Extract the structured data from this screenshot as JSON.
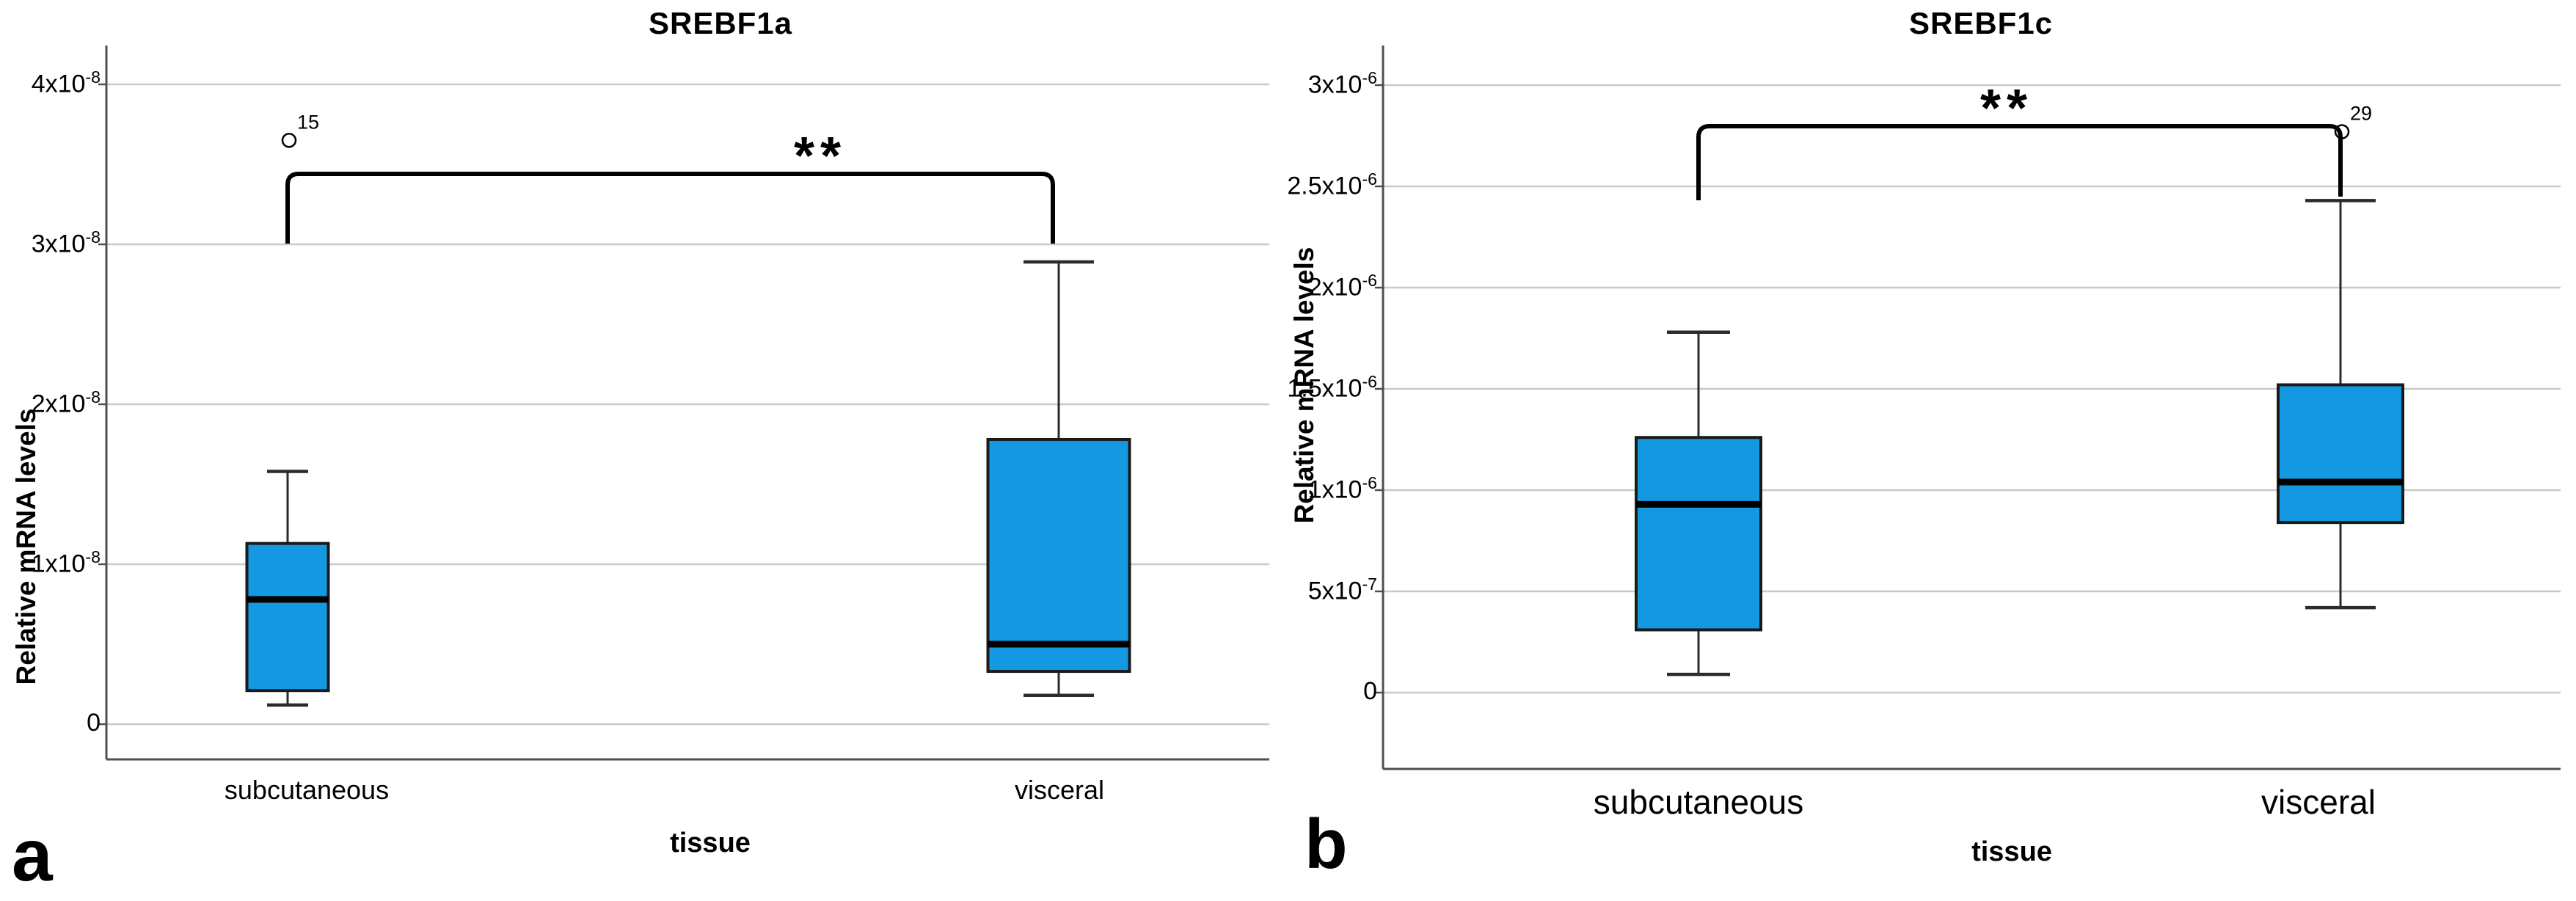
{
  "figure": {
    "background": "#ffffff",
    "panel_letters": [
      "a",
      "b"
    ]
  },
  "colors": {
    "box_fill": "#1598E2",
    "box_border": "#1a1a1a",
    "median": "#000000",
    "whisker": "#2b2b2b",
    "gridline": "#c9c9c9",
    "axis": "#4f4f4f",
    "text": "#000000"
  },
  "chart_data": [
    {
      "type": "box",
      "title": "SREBF1a",
      "ylabel": "Relative mRNA levels",
      "xlabel": "tissue",
      "categories": [
        "subcutaneous",
        "visceral"
      ],
      "grid": true,
      "legend": "none",
      "ylim": [
        -2.2e-09,
        4.25e-08
      ],
      "y_ticks": [
        {
          "text": "0",
          "sup": "",
          "v": 0
        },
        {
          "text": "1x10",
          "sup": "-8",
          "v": 1e-08
        },
        {
          "text": "2x10",
          "sup": "-8",
          "v": 2e-08
        },
        {
          "text": "3x10",
          "sup": "-8",
          "v": 3e-08
        },
        {
          "text": "4x10",
          "sup": "-8",
          "v": 4e-08
        }
      ],
      "series": [
        {
          "name": "subcutaneous",
          "min": 1.2e-09,
          "q1": 2.1e-09,
          "median": 7.8e-09,
          "q3": 1.13e-08,
          "max": 1.58e-08,
          "outliers": [
            {
              "v": 3.65e-08,
              "label": "15"
            }
          ]
        },
        {
          "name": "visceral",
          "min": 1.8e-09,
          "q1": 3.3e-09,
          "median": 5e-09,
          "q3": 1.78e-08,
          "max": 2.89e-08,
          "outliers": []
        }
      ],
      "significance": {
        "text": "**",
        "between": [
          "subcutaneous",
          "visceral"
        ]
      }
    },
    {
      "type": "box",
      "title": "SREBF1c",
      "ylabel": "Relative mRNA levels",
      "xlabel": "tissue",
      "categories": [
        "subcutaneous",
        "visceral"
      ],
      "grid": true,
      "legend": "none",
      "ylim": [
        -3.8e-07,
        3.2e-06
      ],
      "y_ticks": [
        {
          "text": "0",
          "sup": "",
          "v": 0
        },
        {
          "text": "5x10",
          "sup": "-7",
          "v": 5e-07
        },
        {
          "text": "1x10",
          "sup": "-6",
          "v": 1e-06
        },
        {
          "text": "1.5x10",
          "sup": "-6",
          "v": 1.5e-06
        },
        {
          "text": "2x10",
          "sup": "-6",
          "v": 2e-06
        },
        {
          "text": "2.5x10",
          "sup": "-6",
          "v": 2.5e-06
        },
        {
          "text": "3x10",
          "sup": "-6",
          "v": 3e-06
        }
      ],
      "series": [
        {
          "name": "subcutaneous",
          "min": 9e-08,
          "q1": 3.1e-07,
          "median": 9.3e-07,
          "q3": 1.26e-06,
          "max": 1.78e-06,
          "outliers": []
        },
        {
          "name": "visceral",
          "min": 4.2e-07,
          "q1": 8.4e-07,
          "median": 1.04e-06,
          "q3": 1.52e-06,
          "max": 2.43e-06,
          "outliers": [
            {
              "v": 2.77e-06,
              "label": "29"
            }
          ]
        }
      ],
      "significance": {
        "text": "**",
        "between": [
          "subcutaneous",
          "visceral"
        ]
      }
    }
  ]
}
